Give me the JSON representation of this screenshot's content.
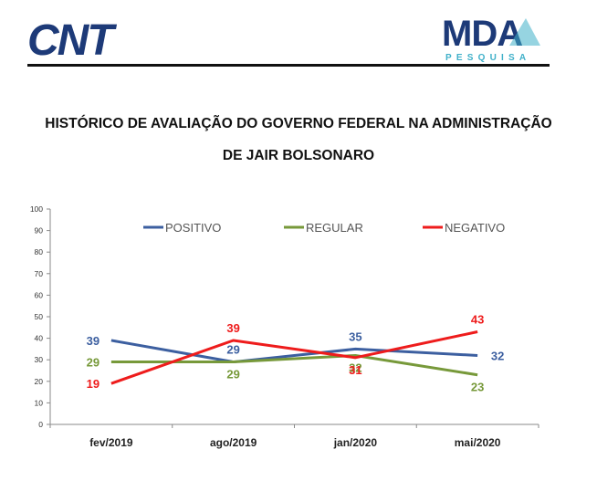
{
  "header": {
    "left_logo_text": "CNT",
    "right_logo_text": "MDA",
    "right_logo_subtext": "PESQUISA",
    "brand_colors": {
      "cnt": "#1d3a78",
      "mda": "#1d3a78",
      "mda_accent": "#3fb0c9"
    }
  },
  "title": {
    "line1": "HISTÓRICO DE AVALIAÇÃO DO GOVERNO FEDERAL NA ADMINISTRAÇÃO",
    "line2": "DE JAIR BOLSONARO"
  },
  "chart_data": {
    "type": "line",
    "categories": [
      "fev/2019",
      "ago/2019",
      "jan/2020",
      "mai/2020"
    ],
    "series": [
      {
        "name": "POSITIVO",
        "color": "#3c5fa0",
        "values": [
          39,
          29,
          35,
          32
        ]
      },
      {
        "name": "REGULAR",
        "color": "#77993a",
        "values": [
          29,
          29,
          32,
          23
        ]
      },
      {
        "name": "NEGATIVO",
        "color": "#ee1c1c",
        "values": [
          19,
          39,
          31,
          43
        ]
      }
    ],
    "ylim": [
      0,
      100
    ],
    "yticks": [
      0,
      10,
      20,
      30,
      40,
      50,
      60,
      70,
      80,
      90,
      100
    ],
    "grid": false,
    "legend_position": "top"
  }
}
